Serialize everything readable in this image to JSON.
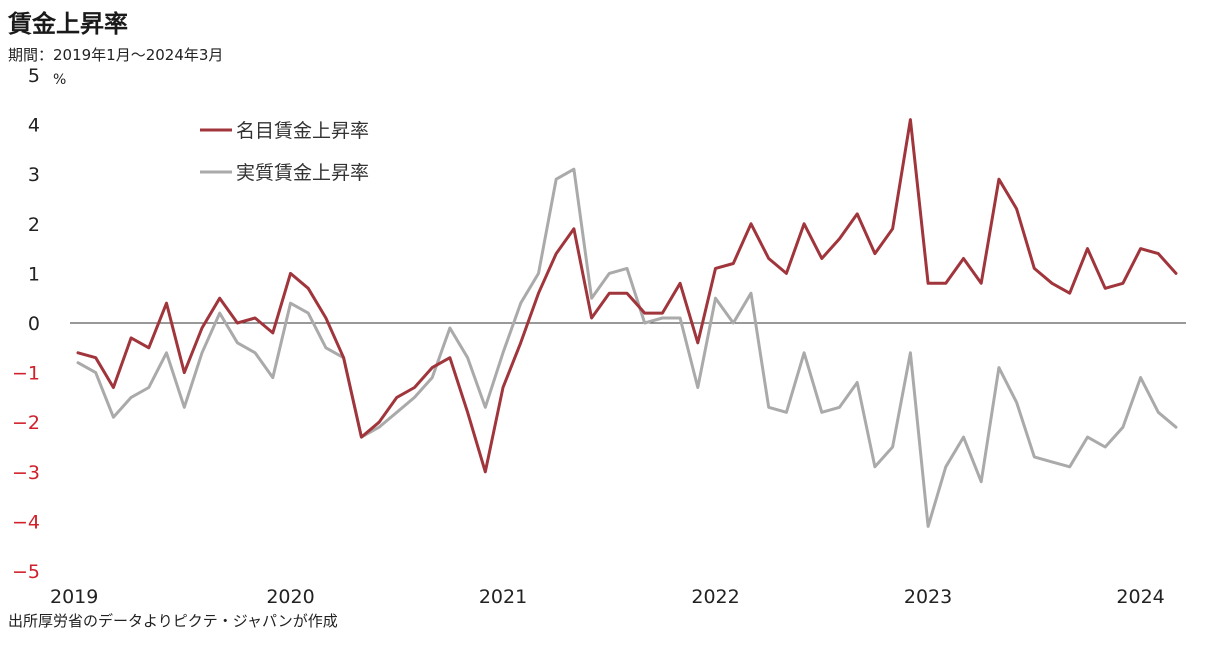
{
  "title": "賃金上昇率",
  "subtitle": "期間：2019年1月～2024年3月",
  "source": "出所厚労省のデータよりピクテ・ジャパンが作成",
  "colors": {
    "nominal": "#a0353c",
    "real": "#aaaaaa",
    "negative_tick": "#d0202a",
    "positive_tick": "#222222",
    "zero_line": "#333333"
  },
  "chart_data": {
    "type": "line",
    "title": "賃金上昇率",
    "ylabel": "%",
    "ylim": [
      -5,
      5
    ],
    "yticks": [
      5,
      4,
      3,
      2,
      1,
      0,
      -1,
      -2,
      -3,
      -4,
      -5
    ],
    "xlim": [
      "2019-01",
      "2024-03"
    ],
    "x_tick_labels": [
      "2019",
      "2020",
      "2021",
      "2022",
      "2023",
      "2024"
    ],
    "legend": {
      "placement": "top-left"
    },
    "grid": false,
    "x": [
      "2019-01",
      "2019-02",
      "2019-03",
      "2019-04",
      "2019-05",
      "2019-06",
      "2019-07",
      "2019-08",
      "2019-09",
      "2019-10",
      "2019-11",
      "2019-12",
      "2020-01",
      "2020-02",
      "2020-03",
      "2020-04",
      "2020-05",
      "2020-06",
      "2020-07",
      "2020-08",
      "2020-09",
      "2020-10",
      "2020-11",
      "2020-12",
      "2021-01",
      "2021-02",
      "2021-03",
      "2021-04",
      "2021-05",
      "2021-06",
      "2021-07",
      "2021-08",
      "2021-09",
      "2021-10",
      "2021-11",
      "2021-12",
      "2022-01",
      "2022-02",
      "2022-03",
      "2022-04",
      "2022-05",
      "2022-06",
      "2022-07",
      "2022-08",
      "2022-09",
      "2022-10",
      "2022-11",
      "2022-12",
      "2023-01",
      "2023-02",
      "2023-03",
      "2023-04",
      "2023-05",
      "2023-06",
      "2023-07",
      "2023-08",
      "2023-09",
      "2023-10",
      "2023-11",
      "2023-12",
      "2024-01",
      "2024-02",
      "2024-03"
    ],
    "series": [
      {
        "name": "名目賃金上昇率",
        "values": [
          -0.6,
          -0.7,
          -1.3,
          -0.3,
          -0.5,
          0.4,
          -1.0,
          -0.1,
          0.5,
          0.0,
          0.1,
          -0.2,
          1.0,
          0.7,
          0.1,
          -0.7,
          -2.3,
          -2.0,
          -1.5,
          -1.3,
          -0.9,
          -0.7,
          -1.8,
          -3.0,
          -1.3,
          -0.4,
          0.6,
          1.4,
          1.9,
          0.1,
          0.6,
          0.6,
          0.2,
          0.2,
          0.8,
          -0.4,
          1.1,
          1.2,
          2.0,
          1.3,
          1.0,
          2.0,
          1.3,
          1.7,
          2.2,
          1.4,
          1.9,
          4.1,
          0.8,
          0.8,
          1.3,
          0.8,
          2.9,
          2.3,
          1.1,
          0.8,
          0.6,
          1.5,
          0.7,
          0.8,
          1.5,
          1.4,
          1.0
        ]
      },
      {
        "name": "実質賃金上昇率",
        "values": [
          -0.8,
          -1.0,
          -1.9,
          -1.5,
          -1.3,
          -0.6,
          -1.7,
          -0.6,
          0.2,
          -0.4,
          -0.6,
          -1.1,
          0.4,
          0.2,
          -0.5,
          -0.7,
          -2.3,
          -2.1,
          -1.8,
          -1.5,
          -1.1,
          -0.1,
          -0.7,
          -1.7,
          -0.6,
          0.4,
          1.0,
          2.9,
          3.1,
          0.5,
          1.0,
          1.1,
          0.0,
          0.1,
          0.1,
          -1.3,
          0.5,
          0.0,
          0.6,
          -1.7,
          -1.8,
          -0.6,
          -1.8,
          -1.7,
          -1.2,
          -2.9,
          -2.5,
          -0.6,
          -4.1,
          -2.9,
          -2.3,
          -3.2,
          -0.9,
          -1.6,
          -2.7,
          -2.8,
          -2.9,
          -2.3,
          -2.5,
          -2.1,
          -1.1,
          -1.8,
          -2.1
        ]
      }
    ]
  }
}
